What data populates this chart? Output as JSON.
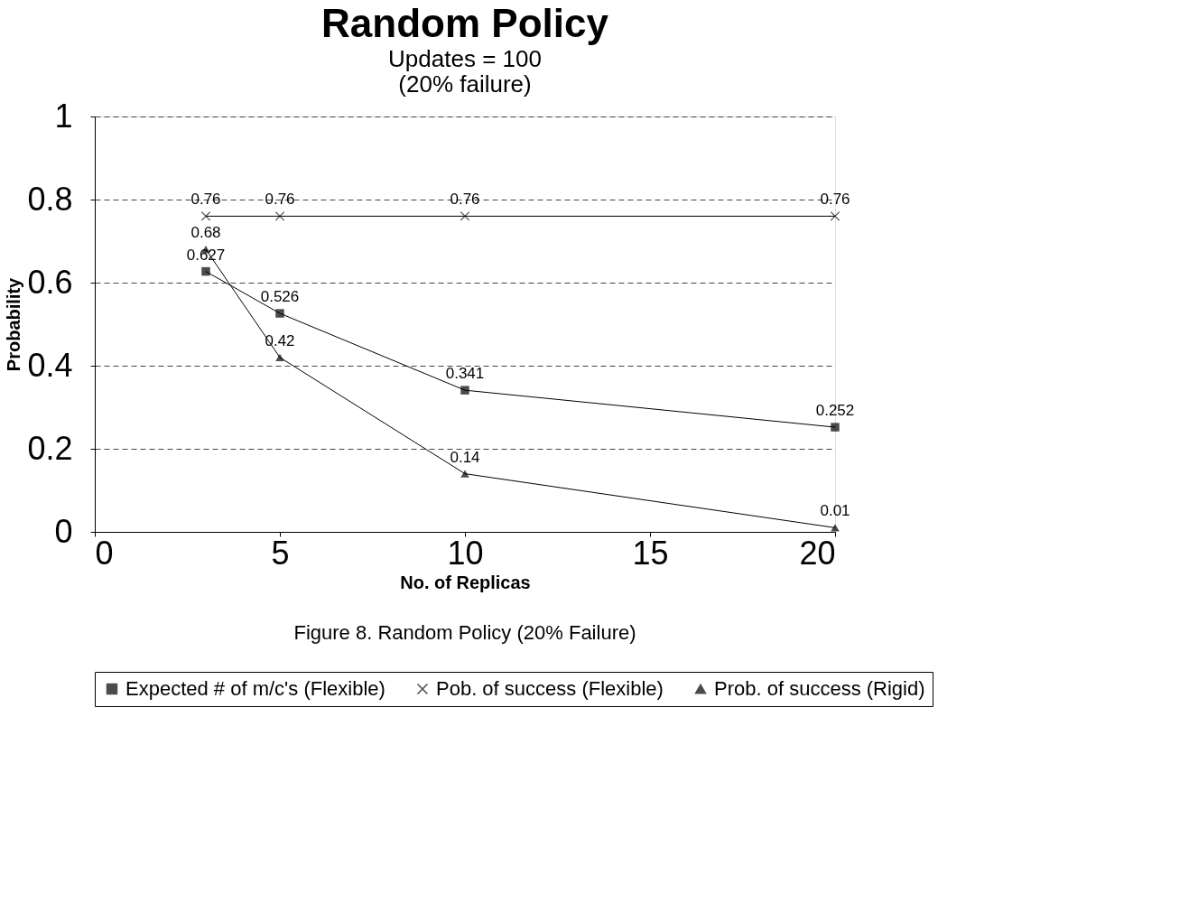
{
  "chart_data": {
    "type": "line",
    "title": "Random Policy",
    "subtitle": "Updates = 100\n(20% failure)",
    "xlabel": "No. of Replicas",
    "ylabel": "Probability",
    "x": [
      3,
      5,
      10,
      20
    ],
    "series": [
      {
        "name": "Expected # of m/c's (Flexible)",
        "color": "#000000",
        "marker": "square",
        "values": [
          0.627,
          0.526,
          0.341,
          0.252
        ]
      },
      {
        "name": "Pob. of success (Flexible)",
        "color": "#000000",
        "marker": "cross",
        "values": [
          0.76,
          0.76,
          0.76,
          0.76
        ]
      },
      {
        "name": "Prob. of success (Rigid)",
        "color": "#000000",
        "marker": "triangle",
        "values": [
          0.68,
          0.42,
          0.14,
          0.01
        ]
      }
    ],
    "xlim": [
      0,
      20
    ],
    "xticks": [
      0,
      5,
      10,
      15,
      20
    ],
    "ylim": [
      0,
      1
    ],
    "yticks": [
      0,
      0.2,
      0.4,
      0.6,
      0.8,
      1
    ],
    "grid": "y",
    "legend": "bottom",
    "data_labels": true,
    "line_style": "solid",
    "annotations": [
      "Figure 8.  Random Policy (20% Failure)"
    ]
  }
}
